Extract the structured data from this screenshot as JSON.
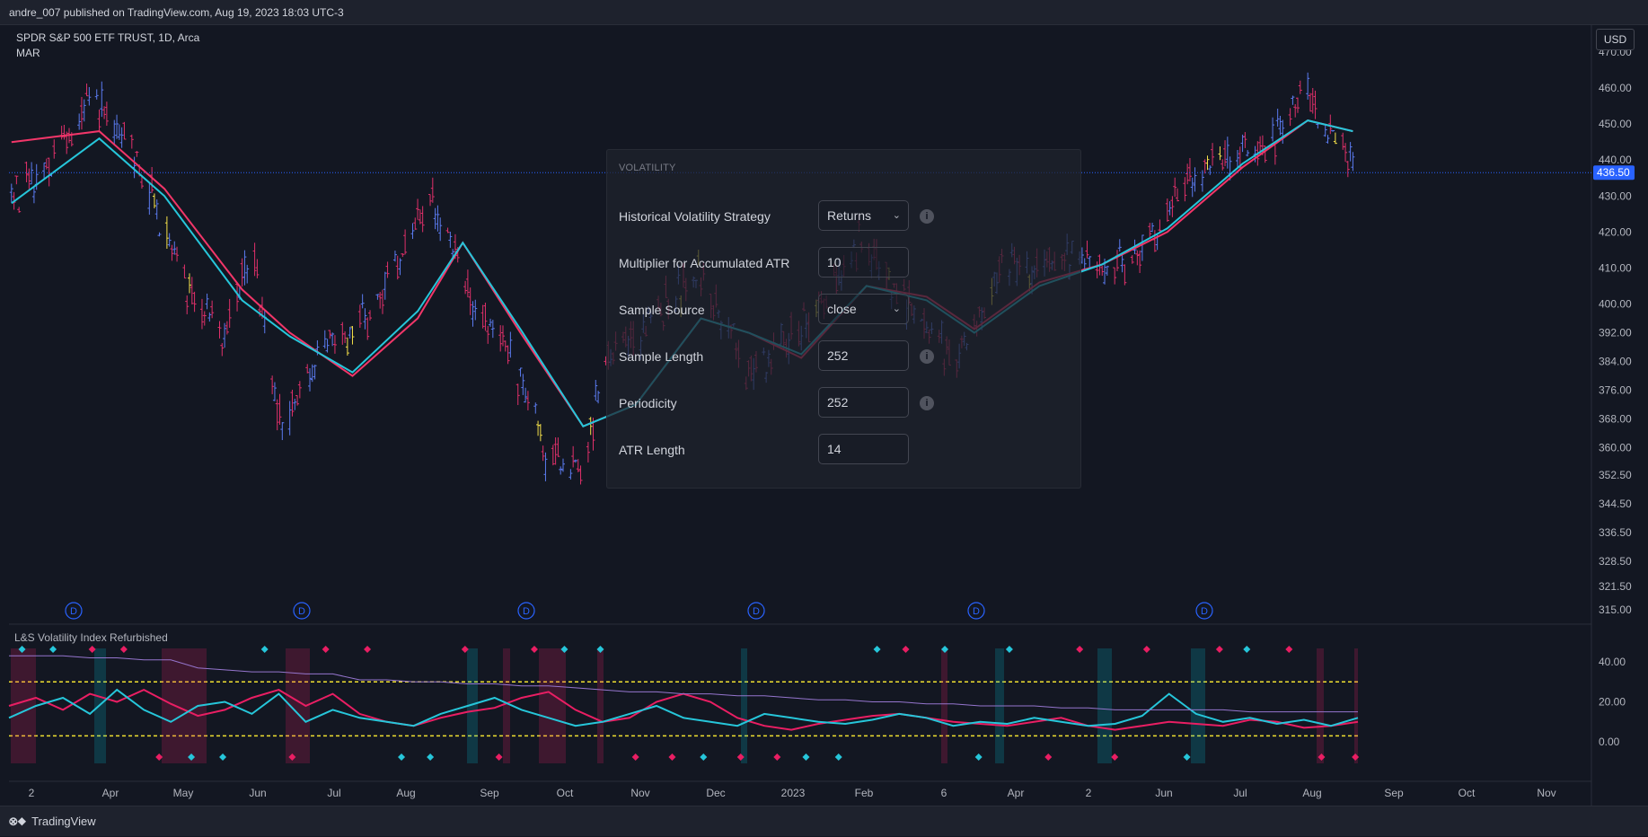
{
  "header": {
    "publish_info": "andre_007 published on TradingView.com, Aug 19, 2023 18:03 UTC-3",
    "symbol_line": "SPDR S&P 500 ETF TRUST, 1D, Arca",
    "indicator_tag": "MAR",
    "currency": "USD"
  },
  "footer": {
    "brand": "TradingView"
  },
  "settings_panel": {
    "title": "VOLATILITY",
    "rows": [
      {
        "label": "Historical Volatility Strategy",
        "value": "Returns",
        "kind": "select",
        "info": true
      },
      {
        "label": "Multiplier for Accumulated ATR",
        "value": "10",
        "kind": "input",
        "info": false
      },
      {
        "label": "Sample Source",
        "value": "close",
        "kind": "select",
        "info": false
      },
      {
        "label": "Sample Length",
        "value": "252",
        "kind": "input",
        "info": true
      },
      {
        "label": "Periodicity",
        "value": "252",
        "kind": "input",
        "info": true
      },
      {
        "label": "ATR Length",
        "value": "14",
        "kind": "input",
        "info": false
      }
    ]
  },
  "chart_data": [
    {
      "type": "line",
      "title": "SPDR S&P 500 ETF TRUST, 1D, Arca",
      "series": [
        {
          "name": "MAR",
          "color": "#f23669",
          "x": [
            "2022-03-01",
            "2022-04-05",
            "2022-05-01",
            "2022-06-01",
            "2022-06-20",
            "2022-07-15",
            "2022-08-10",
            "2022-08-28",
            "2022-09-20",
            "2022-10-15",
            "2022-11-05",
            "2022-12-01",
            "2022-12-20",
            "2023-01-10",
            "2023-02-05",
            "2023-03-01",
            "2023-03-20",
            "2023-04-15",
            "2023-05-10",
            "2023-06-05",
            "2023-07-05",
            "2023-07-31",
            "2023-08-18"
          ],
          "y": [
            445,
            448,
            432,
            404,
            392,
            380,
            396,
            417,
            392,
            366,
            372,
            396,
            392,
            385,
            405,
            402,
            393,
            406,
            411,
            420,
            438,
            451,
            448
          ]
        },
        {
          "name": "",
          "color": "#26c6da",
          "x": [
            "2022-03-01",
            "2022-04-05",
            "2022-05-01",
            "2022-06-01",
            "2022-06-20",
            "2022-07-15",
            "2022-08-10",
            "2022-08-28",
            "2022-09-20",
            "2022-10-15",
            "2022-11-05",
            "2022-12-01",
            "2022-12-20",
            "2023-01-10",
            "2023-02-05",
            "2023-03-01",
            "2023-03-20",
            "2023-04-15",
            "2023-05-10",
            "2023-06-05",
            "2023-07-05",
            "2023-07-31",
            "2023-08-18"
          ],
          "y": [
            428,
            446,
            430,
            401,
            391,
            381,
            398,
            417,
            393,
            366,
            372,
            396,
            392,
            386,
            405,
            401,
            392,
            405,
            411,
            421,
            439,
            451,
            448
          ]
        }
      ],
      "price_path": {
        "x": [
          "2022-03-01",
          "2022-03-20",
          "2022-04-01",
          "2022-04-20",
          "2022-05-10",
          "2022-05-25",
          "2022-06-05",
          "2022-06-17",
          "2022-07-01",
          "2022-07-20",
          "2022-08-16",
          "2022-09-01",
          "2022-09-15",
          "2022-09-30",
          "2022-10-13",
          "2022-10-25",
          "2022-11-15",
          "2022-12-01",
          "2022-12-20",
          "2023-01-10",
          "2023-02-02",
          "2023-02-20",
          "2023-03-13",
          "2023-03-31",
          "2023-04-20",
          "2023-05-15",
          "2023-06-01",
          "2023-06-15",
          "2023-07-10",
          "2023-07-31",
          "2023-08-18"
        ],
        "y": [
          430,
          443,
          458,
          440,
          405,
          392,
          412,
          365,
          385,
          395,
          428,
          398,
          388,
          358,
          352,
          385,
          399,
          408,
          381,
          392,
          417,
          401,
          385,
          408,
          412,
          410,
          420,
          436,
          442,
          457,
          436
        ]
      },
      "ylim": [
        312,
        473
      ],
      "y_ticks": [
        "470.00",
        "460.00",
        "450.00",
        "440.00",
        "430.00",
        "420.00",
        "410.00",
        "400.00",
        "392.00",
        "384.00",
        "376.00",
        "368.00",
        "360.00",
        "352.50",
        "344.50",
        "336.50",
        "328.50",
        "321.50",
        "315.00"
      ],
      "x_ticks": [
        "2",
        "Apr",
        "May",
        "Jun",
        "Jul",
        "Aug",
        "Sep",
        "Oct",
        "Nov",
        "Dec",
        "2023",
        "Feb",
        "6",
        "Apr",
        "2",
        "Jun",
        "Jul",
        "Aug",
        "Sep",
        "Oct",
        "Nov"
      ],
      "last_price_label": "436.50",
      "last_price": 436.5,
      "dividend_markers": [
        "D",
        "D",
        "D",
        "D",
        "D",
        "D"
      ],
      "bar_colors": {
        "up": "#5b7bf0",
        "down": "#e0306a",
        "neutral": "#f5e14a"
      },
      "grid": false
    },
    {
      "type": "line",
      "title": "L&S Volatility Index Refurbished",
      "y_ticks": [
        "40.00",
        "20.00",
        "0.00"
      ],
      "ylim": [
        -3,
        50
      ],
      "levels": [
        {
          "value": 30,
          "color": "#f0e030"
        },
        {
          "value": 3,
          "color": "#f0e030"
        }
      ],
      "series": [
        {
          "name": "",
          "color": "#e91e63",
          "y": [
            18,
            22,
            16,
            24,
            20,
            26,
            19,
            13,
            16,
            22,
            26,
            18,
            24,
            14,
            10,
            8,
            12,
            15,
            17,
            22,
            25,
            16,
            10,
            12,
            20,
            24,
            20,
            12,
            8,
            6,
            9,
            11,
            13,
            14,
            12,
            10,
            9,
            8,
            10,
            12,
            8,
            6,
            8,
            10,
            9,
            8,
            11,
            10,
            7,
            8,
            10
          ]
        },
        {
          "name": "",
          "color": "#26c6da",
          "y": [
            12,
            18,
            22,
            14,
            26,
            16,
            10,
            18,
            20,
            14,
            24,
            10,
            16,
            12,
            10,
            8,
            14,
            18,
            22,
            16,
            12,
            8,
            10,
            14,
            18,
            12,
            10,
            8,
            14,
            12,
            10,
            9,
            11,
            14,
            12,
            8,
            10,
            9,
            12,
            10,
            8,
            9,
            13,
            24,
            14,
            10,
            12,
            9,
            11,
            8,
            12
          ]
        },
        {
          "name": "",
          "color": "#9575cd",
          "y": [
            43,
            43,
            43,
            42,
            42,
            41,
            41,
            37,
            36,
            35,
            35,
            34,
            34,
            31,
            31,
            30,
            30,
            29,
            29,
            28,
            28,
            27,
            26,
            25,
            25,
            24,
            24,
            23,
            23,
            22,
            21,
            21,
            20,
            20,
            19,
            19,
            18,
            18,
            18,
            17,
            17,
            16,
            16,
            16,
            16,
            16,
            15,
            15,
            15,
            15,
            15
          ]
        }
      ]
    }
  ]
}
